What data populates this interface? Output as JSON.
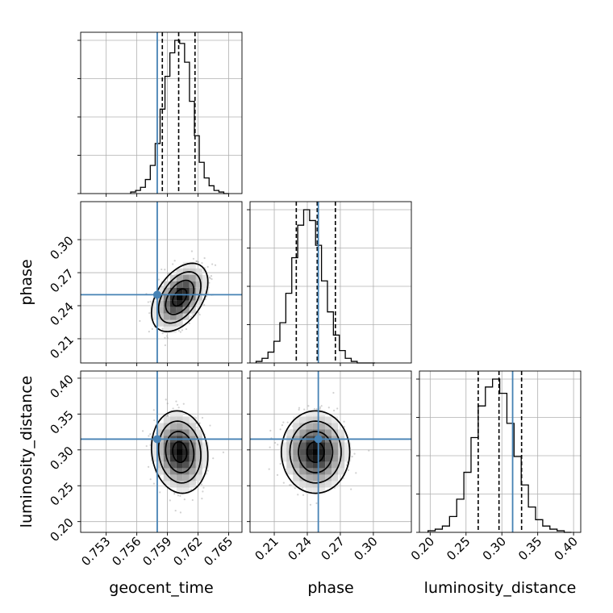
{
  "chart_data": {
    "type": "corner",
    "parameters": [
      "geocent_time",
      "phase",
      "luminosity_distance"
    ],
    "truths": {
      "geocent_time": 0.758,
      "phase": 0.25,
      "luminosity_distance": 0.315
    },
    "colors": {
      "truth": "#4682b4",
      "hist": "#000000",
      "scatter": "#9a9a9a",
      "grid": "#b0b0b0"
    },
    "grid": true,
    "axes": {
      "geocent_time": {
        "range": [
          0.7505,
          0.7663
        ],
        "ticks": [
          0.753,
          0.756,
          0.759,
          0.762,
          0.765
        ],
        "tick_labels": [
          "0.753",
          "0.756",
          "0.759",
          "0.762",
          "0.765"
        ],
        "label": "geocent_time",
        "mean": 0.7602,
        "std": 0.0012,
        "quantiles": [
          0.7585,
          0.7601,
          0.7617
        ]
      },
      "phase": {
        "range": [
          0.188,
          0.3345
        ],
        "ticks": [
          0.21,
          0.24,
          0.27,
          0.3
        ],
        "tick_labels": [
          "0.21",
          "0.24",
          "0.27",
          "0.30"
        ],
        "label": "phase",
        "mean": 0.2475,
        "std": 0.0135,
        "quantiles": [
          0.23,
          0.249,
          0.2655
        ]
      },
      "luminosity_distance": {
        "range": [
          0.185,
          0.41
        ],
        "ticks": [
          0.2,
          0.25,
          0.3,
          0.35,
          0.4
        ],
        "tick_labels": [
          "0.20",
          "0.25",
          "0.30",
          "0.35",
          "0.40"
        ],
        "label": "luminosity_distance",
        "mean": 0.297,
        "std": 0.025,
        "quantiles": [
          0.267,
          0.296,
          0.3275
        ]
      }
    },
    "correlations": {
      "geocent_time|phase": 0.45,
      "geocent_time|luminosity_distance": -0.1,
      "phase|luminosity_distance": 0.0
    },
    "histograms": {
      "geocent_time": [
        1,
        2,
        4,
        9,
        18,
        32,
        54,
        75,
        90,
        98,
        96,
        84,
        59,
        37,
        20,
        10,
        5,
        2,
        1,
        0
      ],
      "phase": [
        1,
        3,
        7,
        14,
        26,
        45,
        68,
        89,
        99,
        92,
        76,
        53,
        33,
        18,
        8,
        3,
        1,
        0,
        0,
        0
      ],
      "luminosity_distance": [
        1,
        2,
        4,
        10,
        21,
        38,
        60,
        80,
        92,
        97,
        88,
        69,
        48,
        30,
        16,
        8,
        4,
        2,
        1,
        0
      ]
    }
  }
}
